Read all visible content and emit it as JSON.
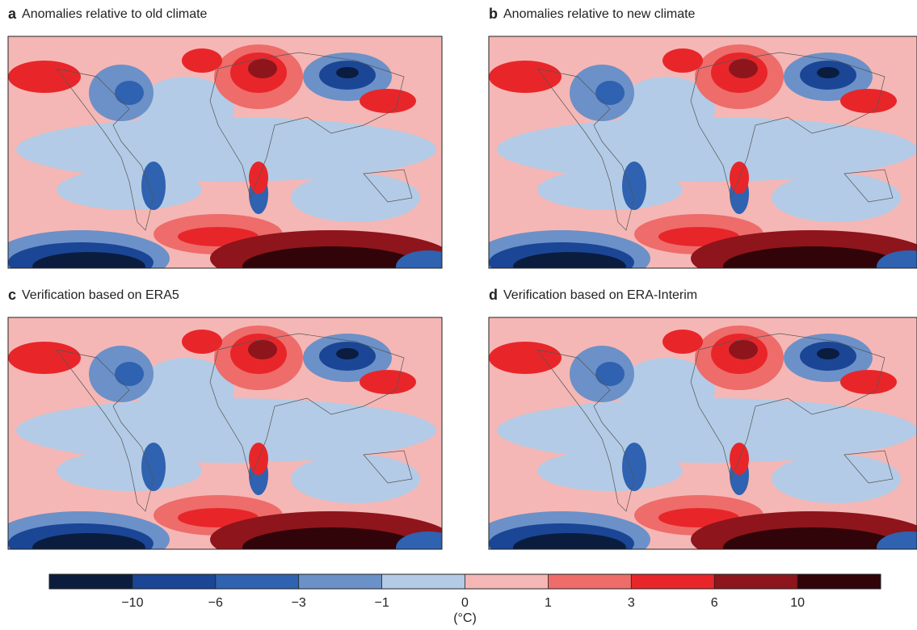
{
  "panels": [
    {
      "letter": "a",
      "title": "Anomalies relative to old climate"
    },
    {
      "letter": "b",
      "title": "Anomalies relative to new climate"
    },
    {
      "letter": "c",
      "title": "Verification based on ERA5"
    },
    {
      "letter": "d",
      "title": "Verification based on ERA-Interim"
    }
  ],
  "colorbar": {
    "colors": [
      "#0b1d3f",
      "#1b4696",
      "#2f62b0",
      "#6b91c8",
      "#b3cbe6",
      "#f5b7b5",
      "#ee6c6a",
      "#e8262a",
      "#8e151c",
      "#300408"
    ],
    "ticks": [
      {
        "value": -10,
        "label": "−10"
      },
      {
        "value": -6,
        "label": "−6"
      },
      {
        "value": -3,
        "label": "−3"
      },
      {
        "value": -1,
        "label": "−1"
      },
      0,
      1,
      3,
      6,
      10
    ],
    "unit": "(°C)"
  }
}
